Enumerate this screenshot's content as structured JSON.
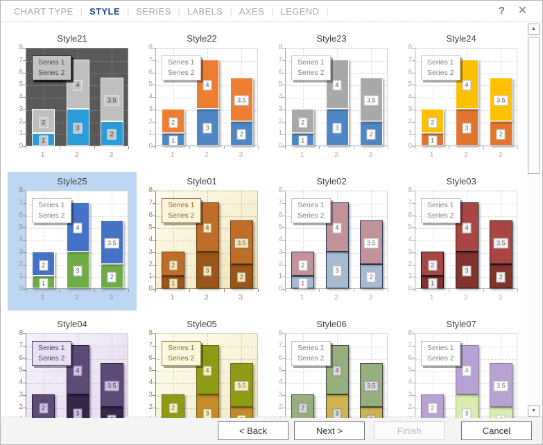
{
  "tabs": {
    "items": [
      {
        "label": "CHART TYPE",
        "active": false
      },
      {
        "label": "STYLE",
        "active": true
      },
      {
        "label": "SERIES",
        "active": false
      },
      {
        "label": "LABELS",
        "active": false
      },
      {
        "label": "AXES",
        "active": false
      },
      {
        "label": "LEGEND",
        "active": false
      }
    ]
  },
  "header_icons": {
    "help": "?",
    "close": "✕"
  },
  "colors": {
    "tab_active": "#1C4587",
    "tab_inactive": "#A6A6A6",
    "selected_tile_bg": "#BDD7F2"
  },
  "chart_data": {
    "type": "bar",
    "stacked": true,
    "title": "",
    "categories": [
      "1",
      "2",
      "3"
    ],
    "series": [
      {
        "name": "Series 1",
        "values": [
          1,
          3,
          2
        ]
      },
      {
        "name": "Series 2",
        "values": [
          2,
          4,
          3.5
        ]
      }
    ],
    "ylim": [
      0,
      8
    ],
    "yticks": [
      0,
      1,
      2,
      3,
      4,
      5,
      6,
      7,
      8
    ],
    "grid": true,
    "legend_position": "top-left-inside"
  },
  "style_defaults": {
    "selected": false,
    "plotBg": "#FFFFFF",
    "plotGrad": null,
    "o1": "#FFFFFF",
    "o2": "#FFFFFF",
    "axis": "#A6A6A6",
    "grid": "#D4D4D4",
    "legendBg": "#FFFFFF",
    "legendBorder": "#BFBFBF",
    "legendText": "#7F7F7F",
    "legendShadow": "rgba(0,0,0,0.35)",
    "labelBg": "#FFFFFF",
    "labelBorder": "#BFBFBF",
    "labelText": "#595959",
    "shadow": true
  },
  "styles": [
    {
      "name": "Style21",
      "plotBg": "#595959",
      "s1": "#2B9CD8",
      "s2": "#BFBFBF",
      "axis": "#8C8C8C",
      "grid": "#8A8A8A",
      "legendBg": "#C3C3C3",
      "legendBorder": "#2B2B2B",
      "legendText": "#4A4A4A",
      "legendShadow": "rgba(0,0,0,0.75)",
      "labelBg": "#C3C3C3",
      "labelBorder": "#EFEFEF",
      "labelText": "#3F3F3F",
      "shadow": false
    },
    {
      "name": "Style22",
      "s1": "#4E87C4",
      "s2": "#ED7D31"
    },
    {
      "name": "Style23",
      "s1": "#4E87C4",
      "s2": "#A8A8A8"
    },
    {
      "name": "Style24",
      "s1": "#E2752E",
      "s2": "#FFC000"
    },
    {
      "name": "Style25",
      "selected": true,
      "s1": "#6FAC47",
      "s2": "#4472C4",
      "axis": "#8C8C8C"
    },
    {
      "name": "Style01",
      "plotGrad": [
        "#FFFDF0",
        "#EFE3B8"
      ],
      "s1": "#9B561B",
      "s2": "#C06D29",
      "o1": "#5E3A12",
      "o2": "#5E3A12",
      "axis": "#9A7B52",
      "grid": "#CCBE94",
      "legendBg": "#FCF5D8",
      "legendBorder": "#8A6D45",
      "legendText": "#86643A",
      "labelBg": "#F3E7C3",
      "labelBorder": "#8A6D45",
      "labelText": "#6B4F26"
    },
    {
      "name": "Style02",
      "s1": "#A7BAD2",
      "s2": "#C39298",
      "o1": "#2A3A55",
      "o2": "#2A3A55"
    },
    {
      "name": "Style03",
      "s1": "#84322E",
      "s2": "#A94643",
      "o1": "#191919",
      "o2": "#191919",
      "labelBg": "#F2F2F2"
    },
    {
      "name": "Style04",
      "plotGrad": [
        "#F6F2FA",
        "#E3D9EE"
      ],
      "s1": "#37254A",
      "s2": "#5D4A76",
      "o1": "#261838",
      "o2": "#261838",
      "axis": "#767676",
      "grid": "#C9BBDA",
      "legendBg": "#E8E0F2",
      "legendBorder": "#5D4A76",
      "legendText": "#4A3A5E",
      "labelBg": "#CEC1DD",
      "labelBorder": "#8F7FA8",
      "labelText": "#3C2C50"
    },
    {
      "name": "Style05",
      "plotGrad": [
        "#FFFEF2",
        "#F0E9C4"
      ],
      "s1": "#C58A2A",
      "s2": "#8E9B15",
      "o1": "#6F5E14",
      "o2": "#6F5E14",
      "axis": "#8F8455",
      "grid": "#CFC795",
      "legendBg": "#FCF7DA",
      "legendBorder": "#9C8F4E",
      "legendText": "#7A702F",
      "labelBg": "#F7EFC5",
      "labelBorder": "#9C8F4E",
      "labelText": "#6B6024"
    },
    {
      "name": "Style06",
      "s1": "#CDB450",
      "s2": "#95AF7D",
      "o1": "#49483E",
      "o2": "#49483E",
      "labelBg": "#DADADA",
      "labelBorder": "#8C8C8C",
      "labelText": "#4A4A4A"
    },
    {
      "name": "Style07",
      "s1": "#DAECB2",
      "s2": "#B8A1D3",
      "o1": "#9CBF5E",
      "o2": "#8E76AE",
      "labelText": "#6E6E6E"
    }
  ],
  "scrollbar": {
    "up_icon": "▲",
    "down_icon": "▼"
  },
  "buttons": {
    "back": "< Back",
    "next": "Next >",
    "finish": "Finish",
    "cancel": "Cancel"
  }
}
